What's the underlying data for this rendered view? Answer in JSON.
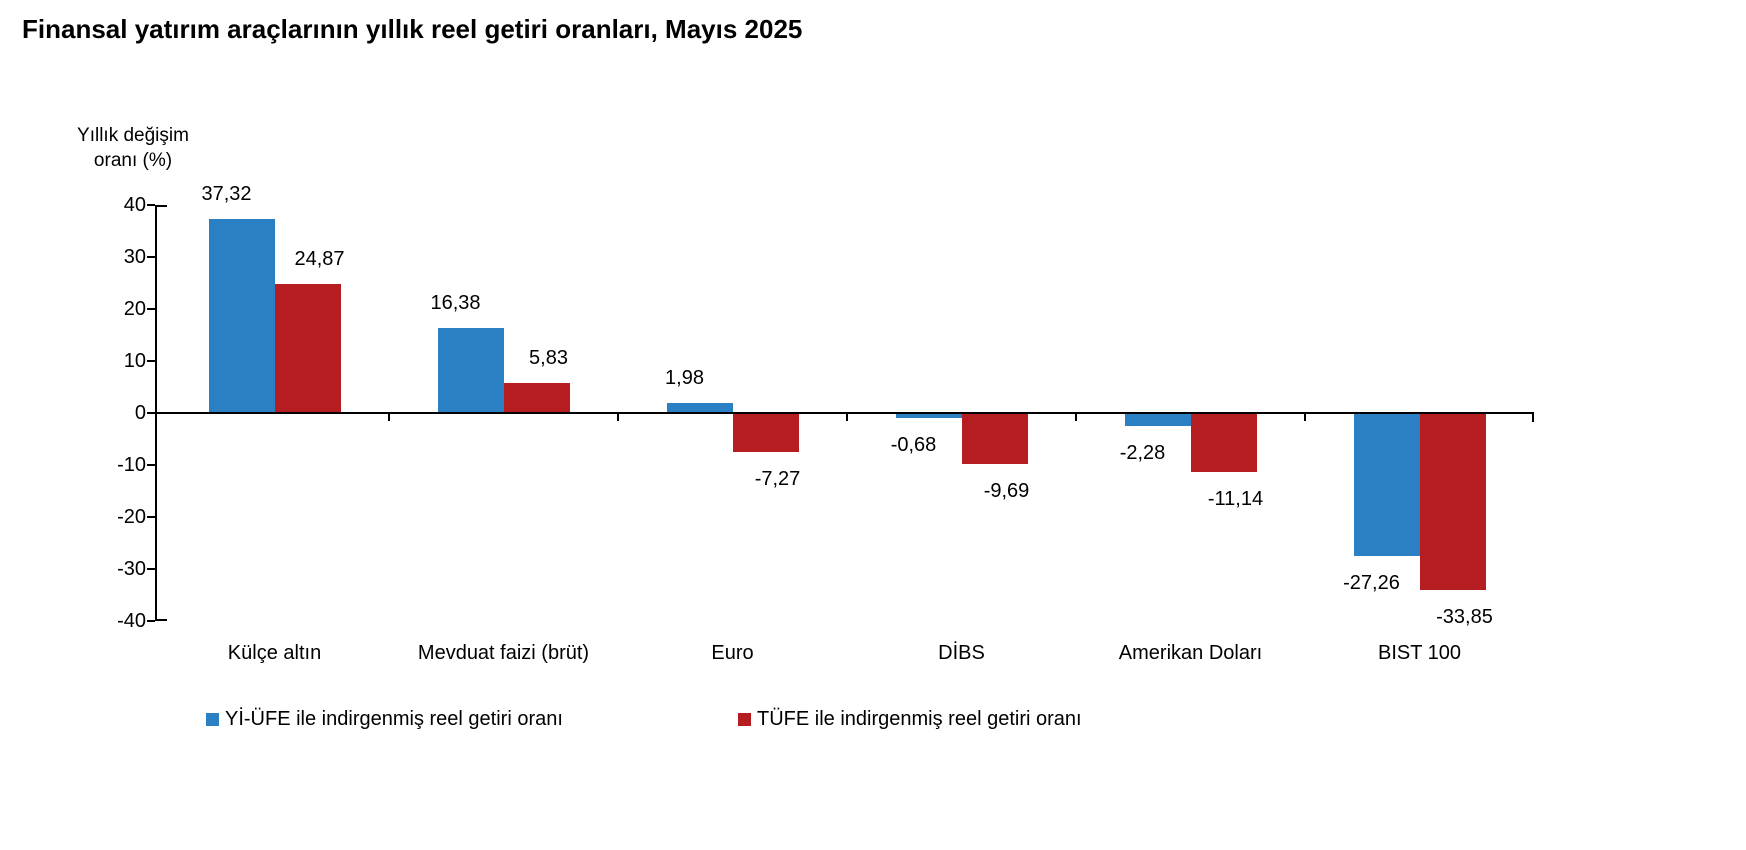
{
  "chart_data": {
    "type": "bar",
    "title": "Finansal yatırım araçlarının yıllık reel getiri oranları, Mayıs 2025",
    "y_axis_title_lines": [
      "Yıllık değişim",
      "oranı (%)"
    ],
    "categories": [
      "Külçe altın",
      "Mevduat faizi (brüt)",
      "Euro",
      "DİBS",
      "Amerikan Doları",
      "BIST 100"
    ],
    "series": [
      {
        "name": "Yİ-ÜFE ile indirgenmiş reel getiri oranı",
        "color": "#2B80C4",
        "values": [
          37.32,
          16.38,
          1.98,
          -0.68,
          -2.28,
          -27.26
        ],
        "value_labels": [
          "37,32",
          "16,38",
          "1,98",
          "-0,68",
          "-2,28",
          "-27,26"
        ]
      },
      {
        "name": "TÜFE ile indirgenmiş reel getiri oranı",
        "color": "#B51D20",
        "values": [
          24.87,
          5.83,
          -7.27,
          -9.69,
          -11.14,
          -33.85
        ],
        "value_labels": [
          "24,87",
          "5,83",
          "-7,27",
          "-9,69",
          "-11,14",
          "-33,85"
        ]
      }
    ],
    "ylim": [
      -40,
      40
    ],
    "yticks": [
      40,
      30,
      20,
      10,
      0,
      -10,
      -20,
      -30,
      -40
    ],
    "grid": false,
    "legend_position": "bottom",
    "decimal_separator": ",",
    "axis_color": "#000000",
    "background_color": "#ffffff"
  }
}
